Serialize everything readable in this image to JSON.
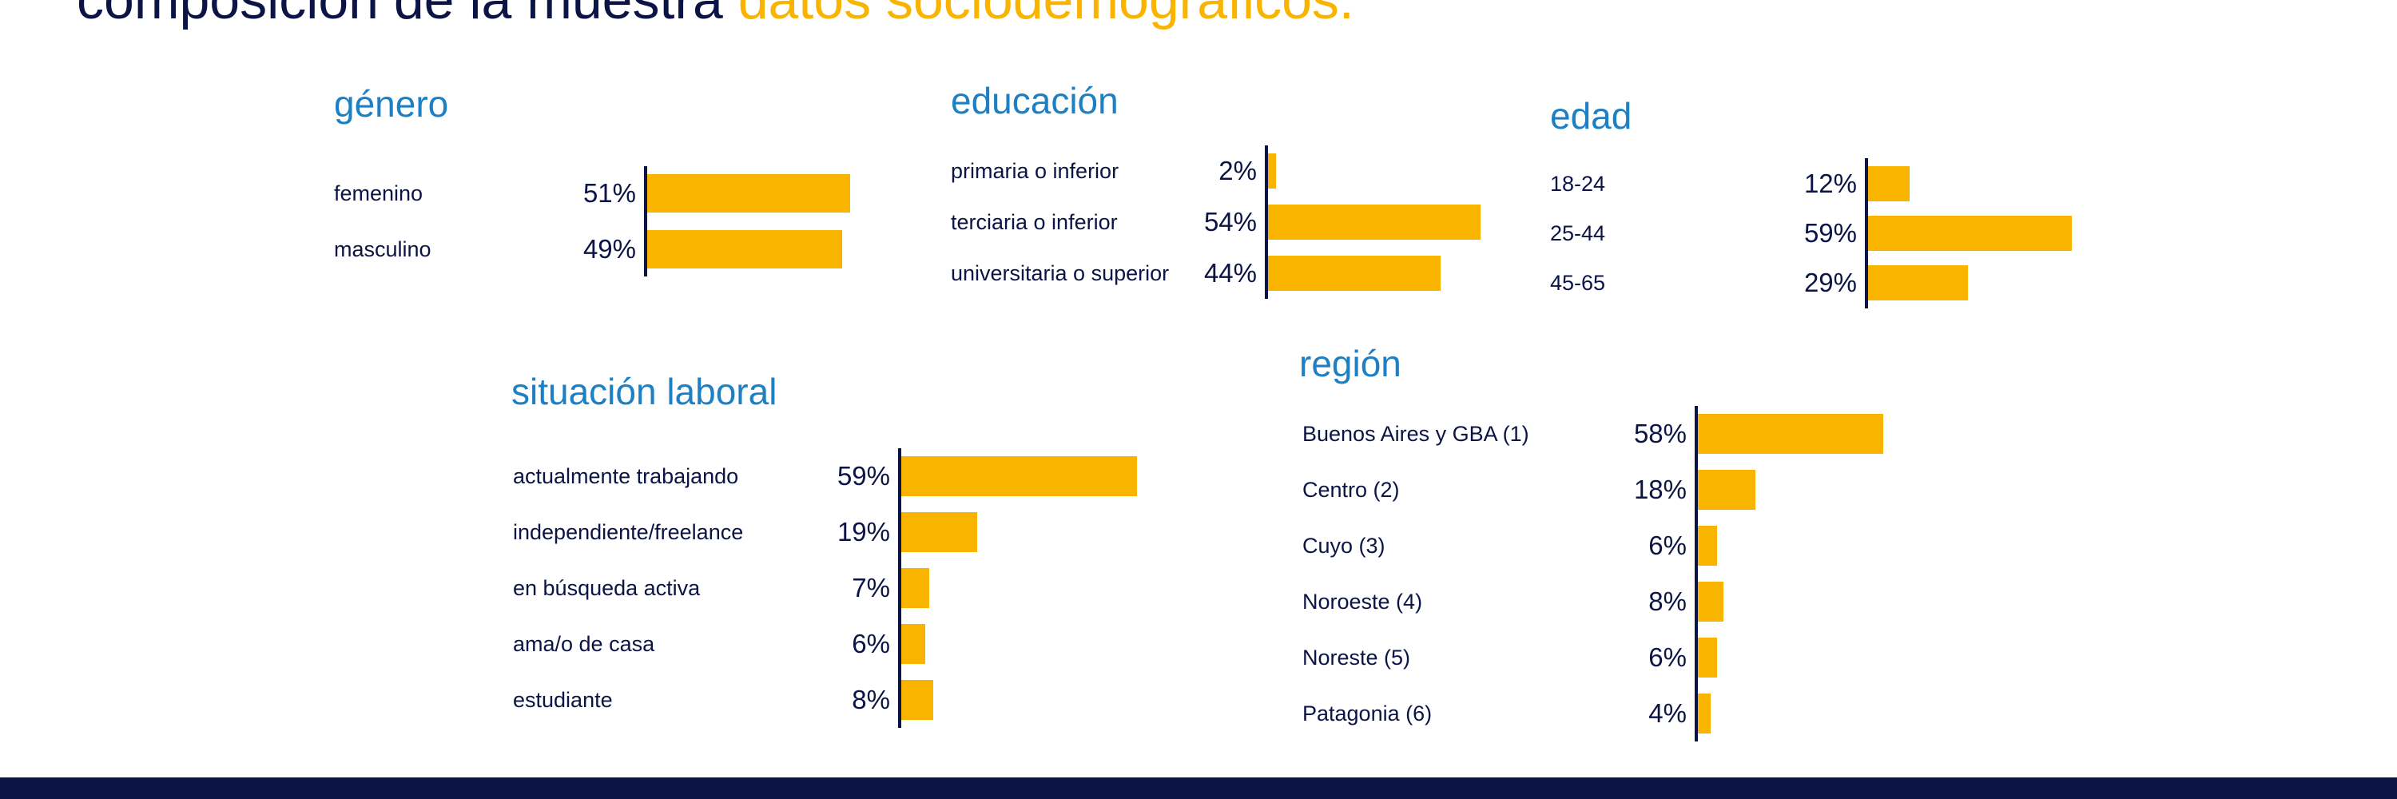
{
  "header": {
    "title_main": "composición de la muestra",
    "title_accent": "datos sociodemográficos."
  },
  "colors": {
    "bar": "#f9b400",
    "title": "#1d7fc4",
    "text": "#0b1445",
    "footer": "#0b1445"
  },
  "chart_data": [
    {
      "type": "bar",
      "title": "género",
      "categories": [
        "femenino",
        "masculino"
      ],
      "values": [
        51,
        49
      ],
      "value_labels": [
        "51%",
        "49%"
      ],
      "orientation": "horizontal"
    },
    {
      "type": "bar",
      "title": "educación",
      "categories": [
        "primaria o inferior",
        "terciaria o inferior",
        "universitaria o superior"
      ],
      "values": [
        2,
        54,
        44
      ],
      "value_labels": [
        "2%",
        "54%",
        "44%"
      ],
      "orientation": "horizontal"
    },
    {
      "type": "bar",
      "title": "edad",
      "categories": [
        "18-24",
        "25-44",
        "45-65"
      ],
      "values": [
        12,
        59,
        29
      ],
      "value_labels": [
        "12%",
        "59%",
        "29%"
      ],
      "orientation": "horizontal"
    },
    {
      "type": "bar",
      "title": "situación laboral",
      "categories": [
        "actualmente trabajando",
        "independiente/freelance",
        "en búsqueda activa",
        "ama/o de casa",
        "estudiante"
      ],
      "values": [
        59,
        19,
        7,
        6,
        8
      ],
      "value_labels": [
        "59%",
        "19%",
        "7%",
        "6%",
        "8%"
      ],
      "orientation": "horizontal"
    },
    {
      "type": "bar",
      "title": "región",
      "categories": [
        "Buenos Aires y GBA (1)",
        "Centro (2)",
        "Cuyo (3)",
        "Noroeste (4)",
        "Noreste (5)",
        "Patagonia (6)"
      ],
      "values": [
        58,
        18,
        6,
        8,
        6,
        4
      ],
      "value_labels": [
        "58%",
        "18%",
        "6%",
        "8%",
        "6%",
        "4%"
      ],
      "orientation": "horizontal"
    }
  ]
}
